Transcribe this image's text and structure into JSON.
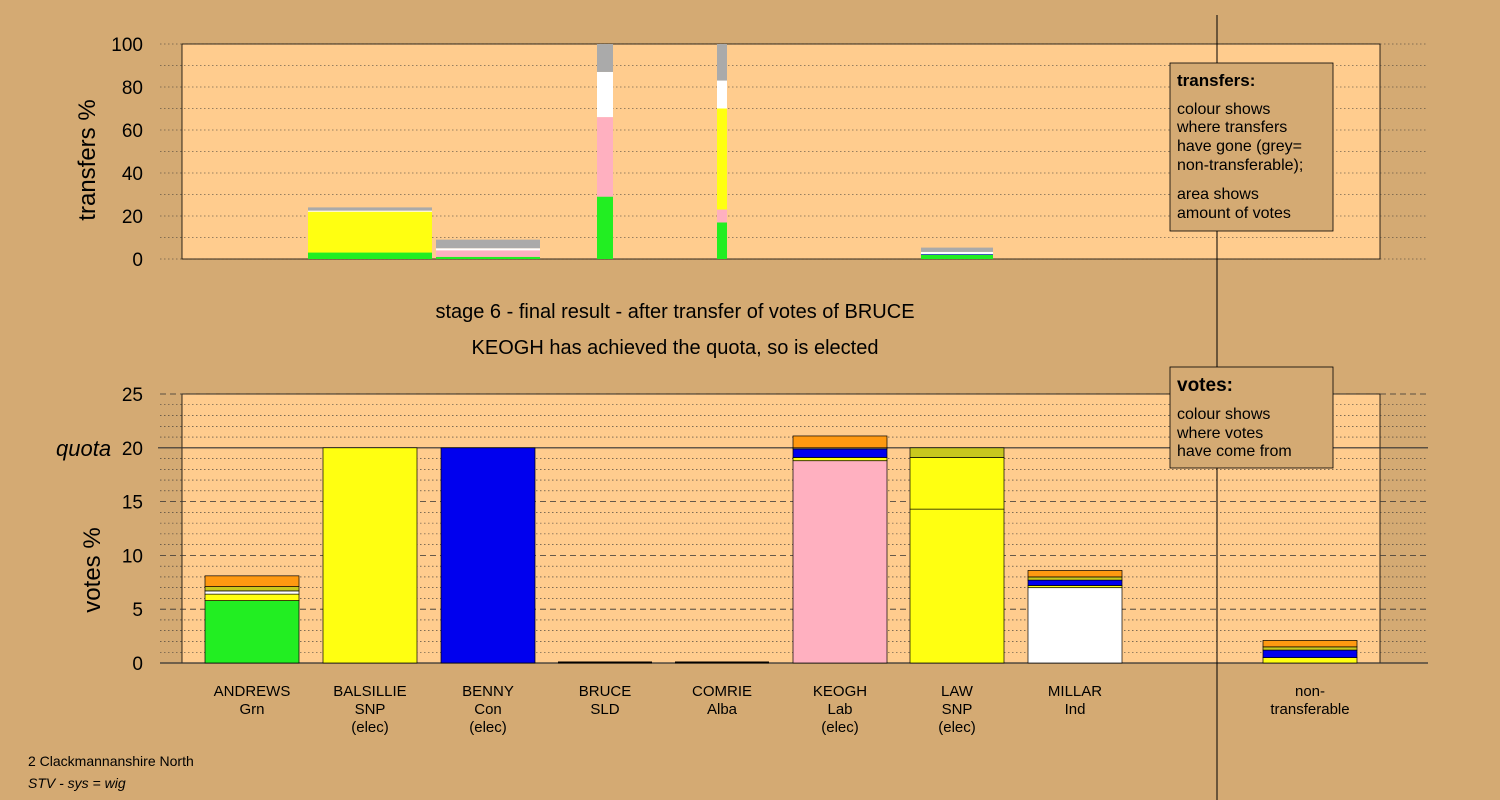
{
  "colors": {
    "background": "#d4aa73",
    "plot_bg": "#ffcc8e",
    "Grn": "#22ee22",
    "SNP": "#ffff11",
    "SNP_orig": "#c8c81e",
    "Con": "#0000ee",
    "Lab": "#ffb0c0",
    "Ind": "#ffffff",
    "SLD": "#ff9911",
    "Alba": "#3a3a8a",
    "nontransferable": "#aaaaaa"
  },
  "stage_title": "stage 6 - final result - after transfer of votes of BRUCE",
  "stage_subtitle": "KEOGH has achieved the quota, so is elected",
  "footer": {
    "line1": "2 Clackmannanshire North",
    "line2": "STV - sys = wig"
  },
  "legend_transfers": {
    "title": "transfers:",
    "lines": [
      "colour shows",
      "where transfers",
      "have gone (grey=",
      "non-transferable);",
      "area shows",
      "amount of votes"
    ]
  },
  "legend_votes": {
    "title": "votes:",
    "lines": [
      "colour shows",
      "where votes",
      "have come from"
    ]
  },
  "chart_data": [
    {
      "type": "bar",
      "name": "transfers",
      "ylabel": "transfers %",
      "ylim": [
        0,
        100
      ],
      "yticks": [
        0,
        20,
        40,
        60,
        80,
        100
      ],
      "grid": "dotted",
      "bars": [
        {
          "candidate": "BALSILLIE",
          "segments": [
            {
              "color": "Grn",
              "value": 3
            },
            {
              "color": "SNP",
              "value": 19
            },
            {
              "color": "Ind",
              "value": 0.5
            },
            {
              "color": "nontransferable",
              "value": 1.5
            }
          ]
        },
        {
          "candidate": "BENNY",
          "segments": [
            {
              "color": "Grn",
              "value": 1
            },
            {
              "color": "Lab",
              "value": 3
            },
            {
              "color": "Ind",
              "value": 1
            },
            {
              "color": "nontransferable",
              "value": 4
            }
          ]
        },
        {
          "candidate": "BRUCE",
          "segments": [
            {
              "color": "Grn",
              "value": 29
            },
            {
              "color": "Lab",
              "value": 37
            },
            {
              "color": "Ind",
              "value": 21
            },
            {
              "color": "nontransferable",
              "value": 13
            }
          ]
        },
        {
          "candidate": "COMRIE",
          "segments": [
            {
              "color": "Grn",
              "value": 17
            },
            {
              "color": "Lab",
              "value": 6
            },
            {
              "color": "SNP",
              "value": 47
            },
            {
              "color": "Ind",
              "value": 13
            },
            {
              "color": "nontransferable",
              "value": 17
            }
          ]
        },
        {
          "candidate": "LAW",
          "segments": [
            {
              "color": "Grn",
              "value": 2
            },
            {
              "color": "Con",
              "value": 0.3
            },
            {
              "color": "Ind",
              "value": 1
            },
            {
              "color": "nontransferable",
              "value": 2
            }
          ]
        }
      ]
    },
    {
      "type": "bar",
      "name": "votes",
      "ylabel": "votes %",
      "ylim": [
        0,
        25
      ],
      "yticks": [
        0,
        5,
        10,
        15,
        20,
        25
      ],
      "quota": 20,
      "quota_label": "quota",
      "grid": "dashed",
      "categories": [
        {
          "name": "ANDREWS",
          "party": "Grn",
          "elected": ""
        },
        {
          "name": "BALSILLIE",
          "party": "SNP",
          "elected": "(elec)"
        },
        {
          "name": "BENNY",
          "party": "Con",
          "elected": "(elec)"
        },
        {
          "name": "BRUCE",
          "party": "SLD",
          "elected": ""
        },
        {
          "name": "COMRIE",
          "party": "Alba",
          "elected": ""
        },
        {
          "name": "KEOGH",
          "party": "Lab",
          "elected": "(elec)"
        },
        {
          "name": "LAW",
          "party": "SNP",
          "elected": "(elec)"
        },
        {
          "name": "MILLAR",
          "party": "Ind",
          "elected": ""
        },
        {
          "name": "non-",
          "party": "transferable",
          "elected": ""
        }
      ],
      "bars": [
        {
          "candidate": "ANDREWS",
          "segments": [
            {
              "color": "Grn",
              "value": 5.8
            },
            {
              "color": "SNP",
              "value": 0.6
            },
            {
              "color": "Ind",
              "value": 0.3
            },
            {
              "color": "SNP_orig",
              "value": 0.4
            },
            {
              "color": "SLD",
              "value": 1.0
            }
          ]
        },
        {
          "candidate": "BALSILLIE",
          "segments": [
            {
              "color": "SNP",
              "value": 20
            }
          ]
        },
        {
          "candidate": "BENNY",
          "segments": [
            {
              "color": "Con",
              "value": 20
            }
          ]
        },
        {
          "candidate": "BRUCE",
          "segments": []
        },
        {
          "candidate": "COMRIE",
          "segments": []
        },
        {
          "candidate": "KEOGH",
          "segments": [
            {
              "color": "Lab",
              "value": 18.8
            },
            {
              "color": "SNP",
              "value": 0.3
            },
            {
              "color": "Con",
              "value": 0.8
            },
            {
              "color": "Ind",
              "value": 0.1
            },
            {
              "color": "SLD",
              "value": 1.1
            }
          ]
        },
        {
          "candidate": "LAW",
          "segments": [
            {
              "color": "SNP",
              "value": 14.3
            },
            {
              "color": "SNP",
              "value": 4.8
            },
            {
              "color": "SNP_orig",
              "value": 0.9
            }
          ]
        },
        {
          "candidate": "MILLAR",
          "segments": [
            {
              "color": "Ind",
              "value": 7.0
            },
            {
              "color": "SNP",
              "value": 0.2
            },
            {
              "color": "Con",
              "value": 0.5
            },
            {
              "color": "SNP_orig",
              "value": 0.3
            },
            {
              "color": "SLD",
              "value": 0.6
            }
          ]
        },
        {
          "candidate": "non-transferable",
          "segments": [
            {
              "color": "SNP",
              "value": 0.5
            },
            {
              "color": "Con",
              "value": 0.7
            },
            {
              "color": "SNP_orig",
              "value": 0.3
            },
            {
              "color": "SLD",
              "value": 0.6
            }
          ]
        }
      ]
    }
  ]
}
